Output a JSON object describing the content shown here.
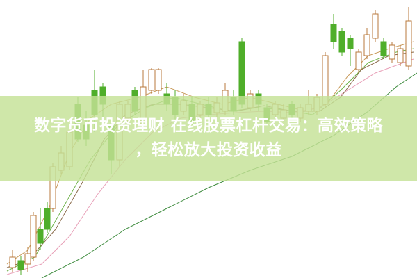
{
  "headline": {
    "line1": "数字货币投资理财 在线股票杠杆交易：高效策略",
    "line2": "，轻松放大投资收益"
  },
  "colors": {
    "banner": "#c4e296",
    "candle_up": "#b87a3c",
    "candle_down": "#4fae2a",
    "title_text": "#ffffff"
  }
}
